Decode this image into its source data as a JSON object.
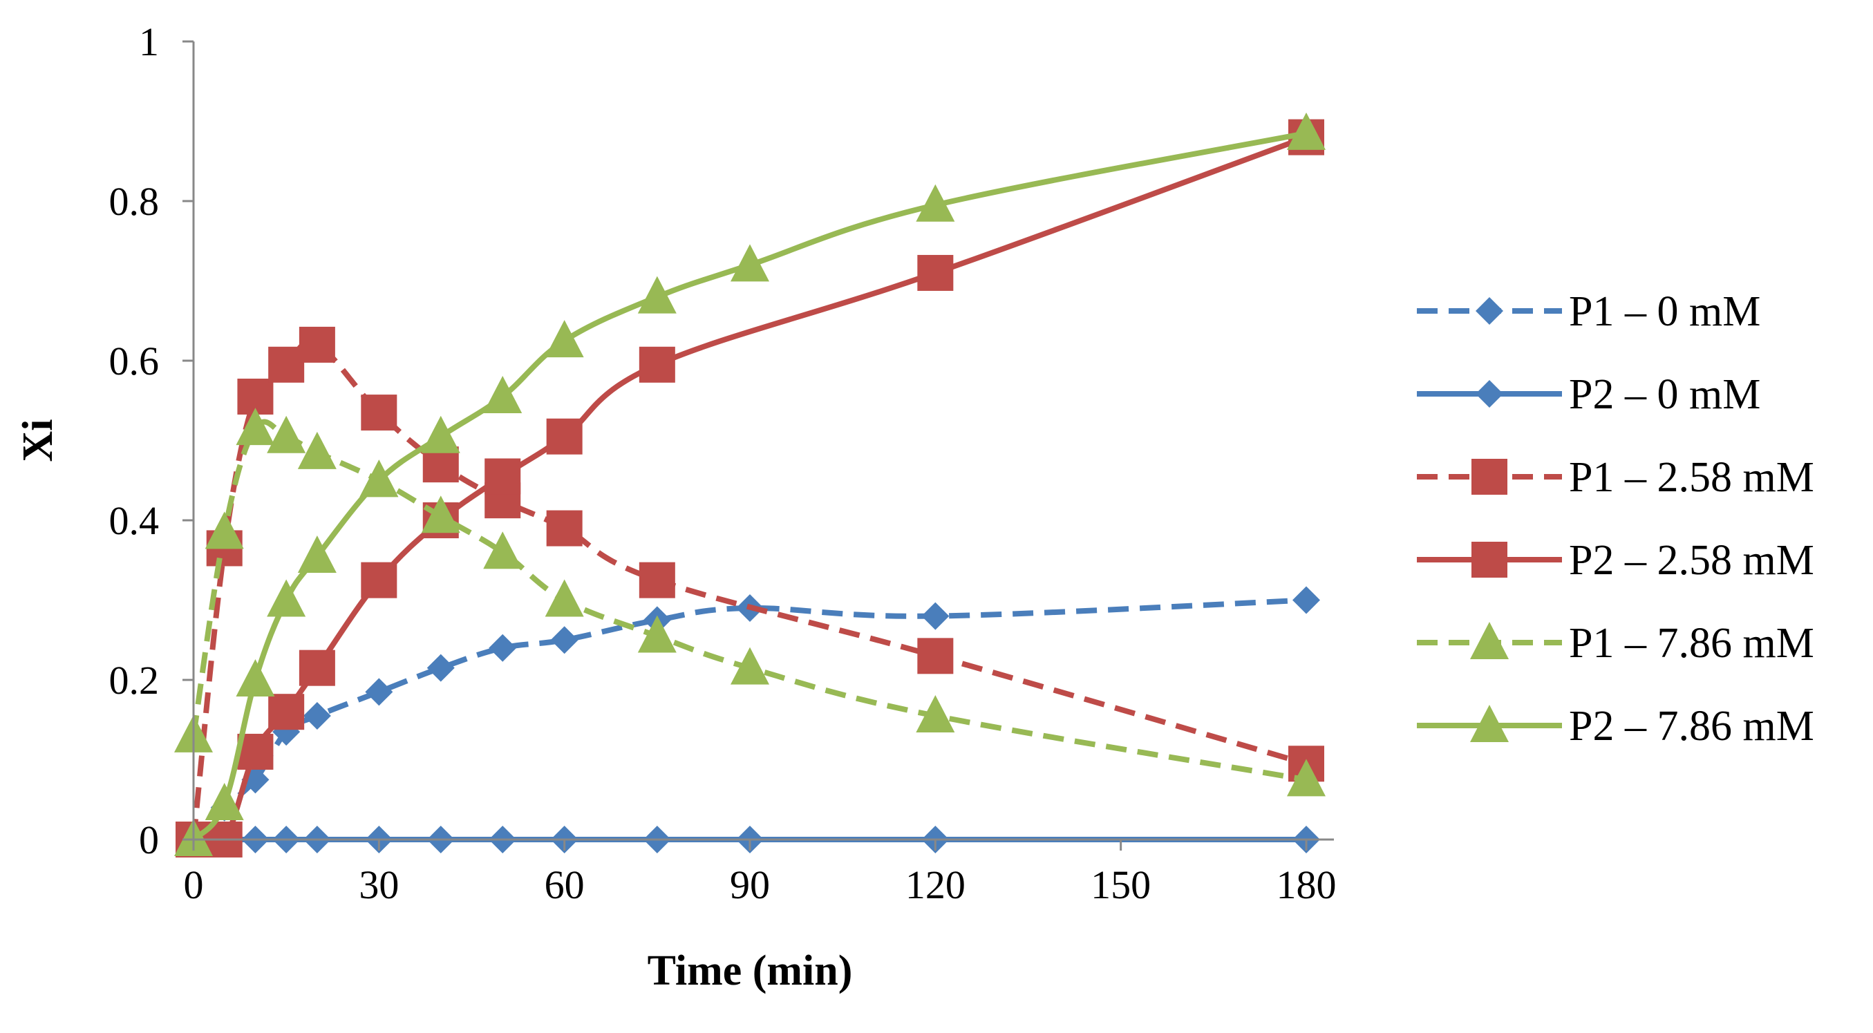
{
  "chart_data": {
    "type": "line",
    "title": "",
    "xlabel": "Time (min)",
    "ylabel": "Xi",
    "xlim": [
      0,
      180
    ],
    "ylim": [
      0,
      1
    ],
    "x_ticks": [
      0,
      30,
      60,
      90,
      120,
      150,
      180
    ],
    "x_tick_labels": [
      "0",
      "30",
      "60",
      "90",
      "120",
      "150",
      "180"
    ],
    "y_ticks": [
      0,
      0.2,
      0.4,
      0.6,
      0.8,
      1
    ],
    "y_tick_labels": [
      "0",
      "0.2",
      "0.4",
      "0.6",
      "0.8",
      "1"
    ],
    "grid": false,
    "legend_position": "right",
    "series": [
      {
        "name": "P1 – 0 mM",
        "color": "#4a7ebb",
        "line": "dashed",
        "marker": "diamond",
        "x": [
          0,
          5,
          10,
          15,
          20,
          30,
          40,
          50,
          60,
          75,
          90,
          120,
          180
        ],
        "y": [
          0,
          0.04,
          0.075,
          0.135,
          0.155,
          0.185,
          0.215,
          0.24,
          0.25,
          0.275,
          0.29,
          0.28,
          0.3
        ]
      },
      {
        "name": "P2 – 0 mM",
        "color": "#4a7ebb",
        "line": "solid",
        "marker": "diamond",
        "x": [
          0,
          5,
          10,
          15,
          20,
          30,
          40,
          50,
          60,
          75,
          90,
          120,
          180
        ],
        "y": [
          0,
          0,
          0,
          0,
          0,
          0,
          0,
          0,
          0,
          0,
          0,
          0,
          0
        ]
      },
      {
        "name": "P1 – 2.58 mM",
        "color": "#be4b48",
        "line": "dashed",
        "marker": "square",
        "x": [
          0,
          5,
          10,
          15,
          20,
          30,
          40,
          50,
          60,
          75,
          120,
          180
        ],
        "y": [
          0,
          0.365,
          0.555,
          0.595,
          0.62,
          0.535,
          0.47,
          0.425,
          0.39,
          0.325,
          0.23,
          0.095
        ]
      },
      {
        "name": "P2 – 2.58 mM",
        "color": "#be4b48",
        "line": "solid",
        "marker": "square",
        "x": [
          0,
          5,
          10,
          15,
          20,
          30,
          40,
          50,
          60,
          75,
          120,
          180
        ],
        "y": [
          0,
          0,
          0.11,
          0.16,
          0.215,
          0.325,
          0.4,
          0.455,
          0.505,
          0.595,
          0.71,
          0.88
        ]
      },
      {
        "name": "P1 – 7.86 mM",
        "color": "#98b954",
        "line": "dashed",
        "marker": "triangle",
        "x": [
          0,
          5,
          10,
          15,
          20,
          30,
          40,
          50,
          60,
          75,
          90,
          120,
          180
        ],
        "y": [
          0.13,
          0.385,
          0.515,
          0.505,
          0.485,
          0.45,
          0.405,
          0.36,
          0.3,
          0.255,
          0.215,
          0.155,
          0.075
        ]
      },
      {
        "name": "P2 – 7.86 mM",
        "color": "#98b954",
        "line": "solid",
        "marker": "triangle",
        "x": [
          0,
          5,
          10,
          15,
          20,
          30,
          40,
          50,
          60,
          75,
          90,
          120,
          180
        ],
        "y": [
          0,
          0.045,
          0.2,
          0.3,
          0.355,
          0.45,
          0.505,
          0.555,
          0.625,
          0.68,
          0.72,
          0.795,
          0.885
        ]
      }
    ]
  }
}
